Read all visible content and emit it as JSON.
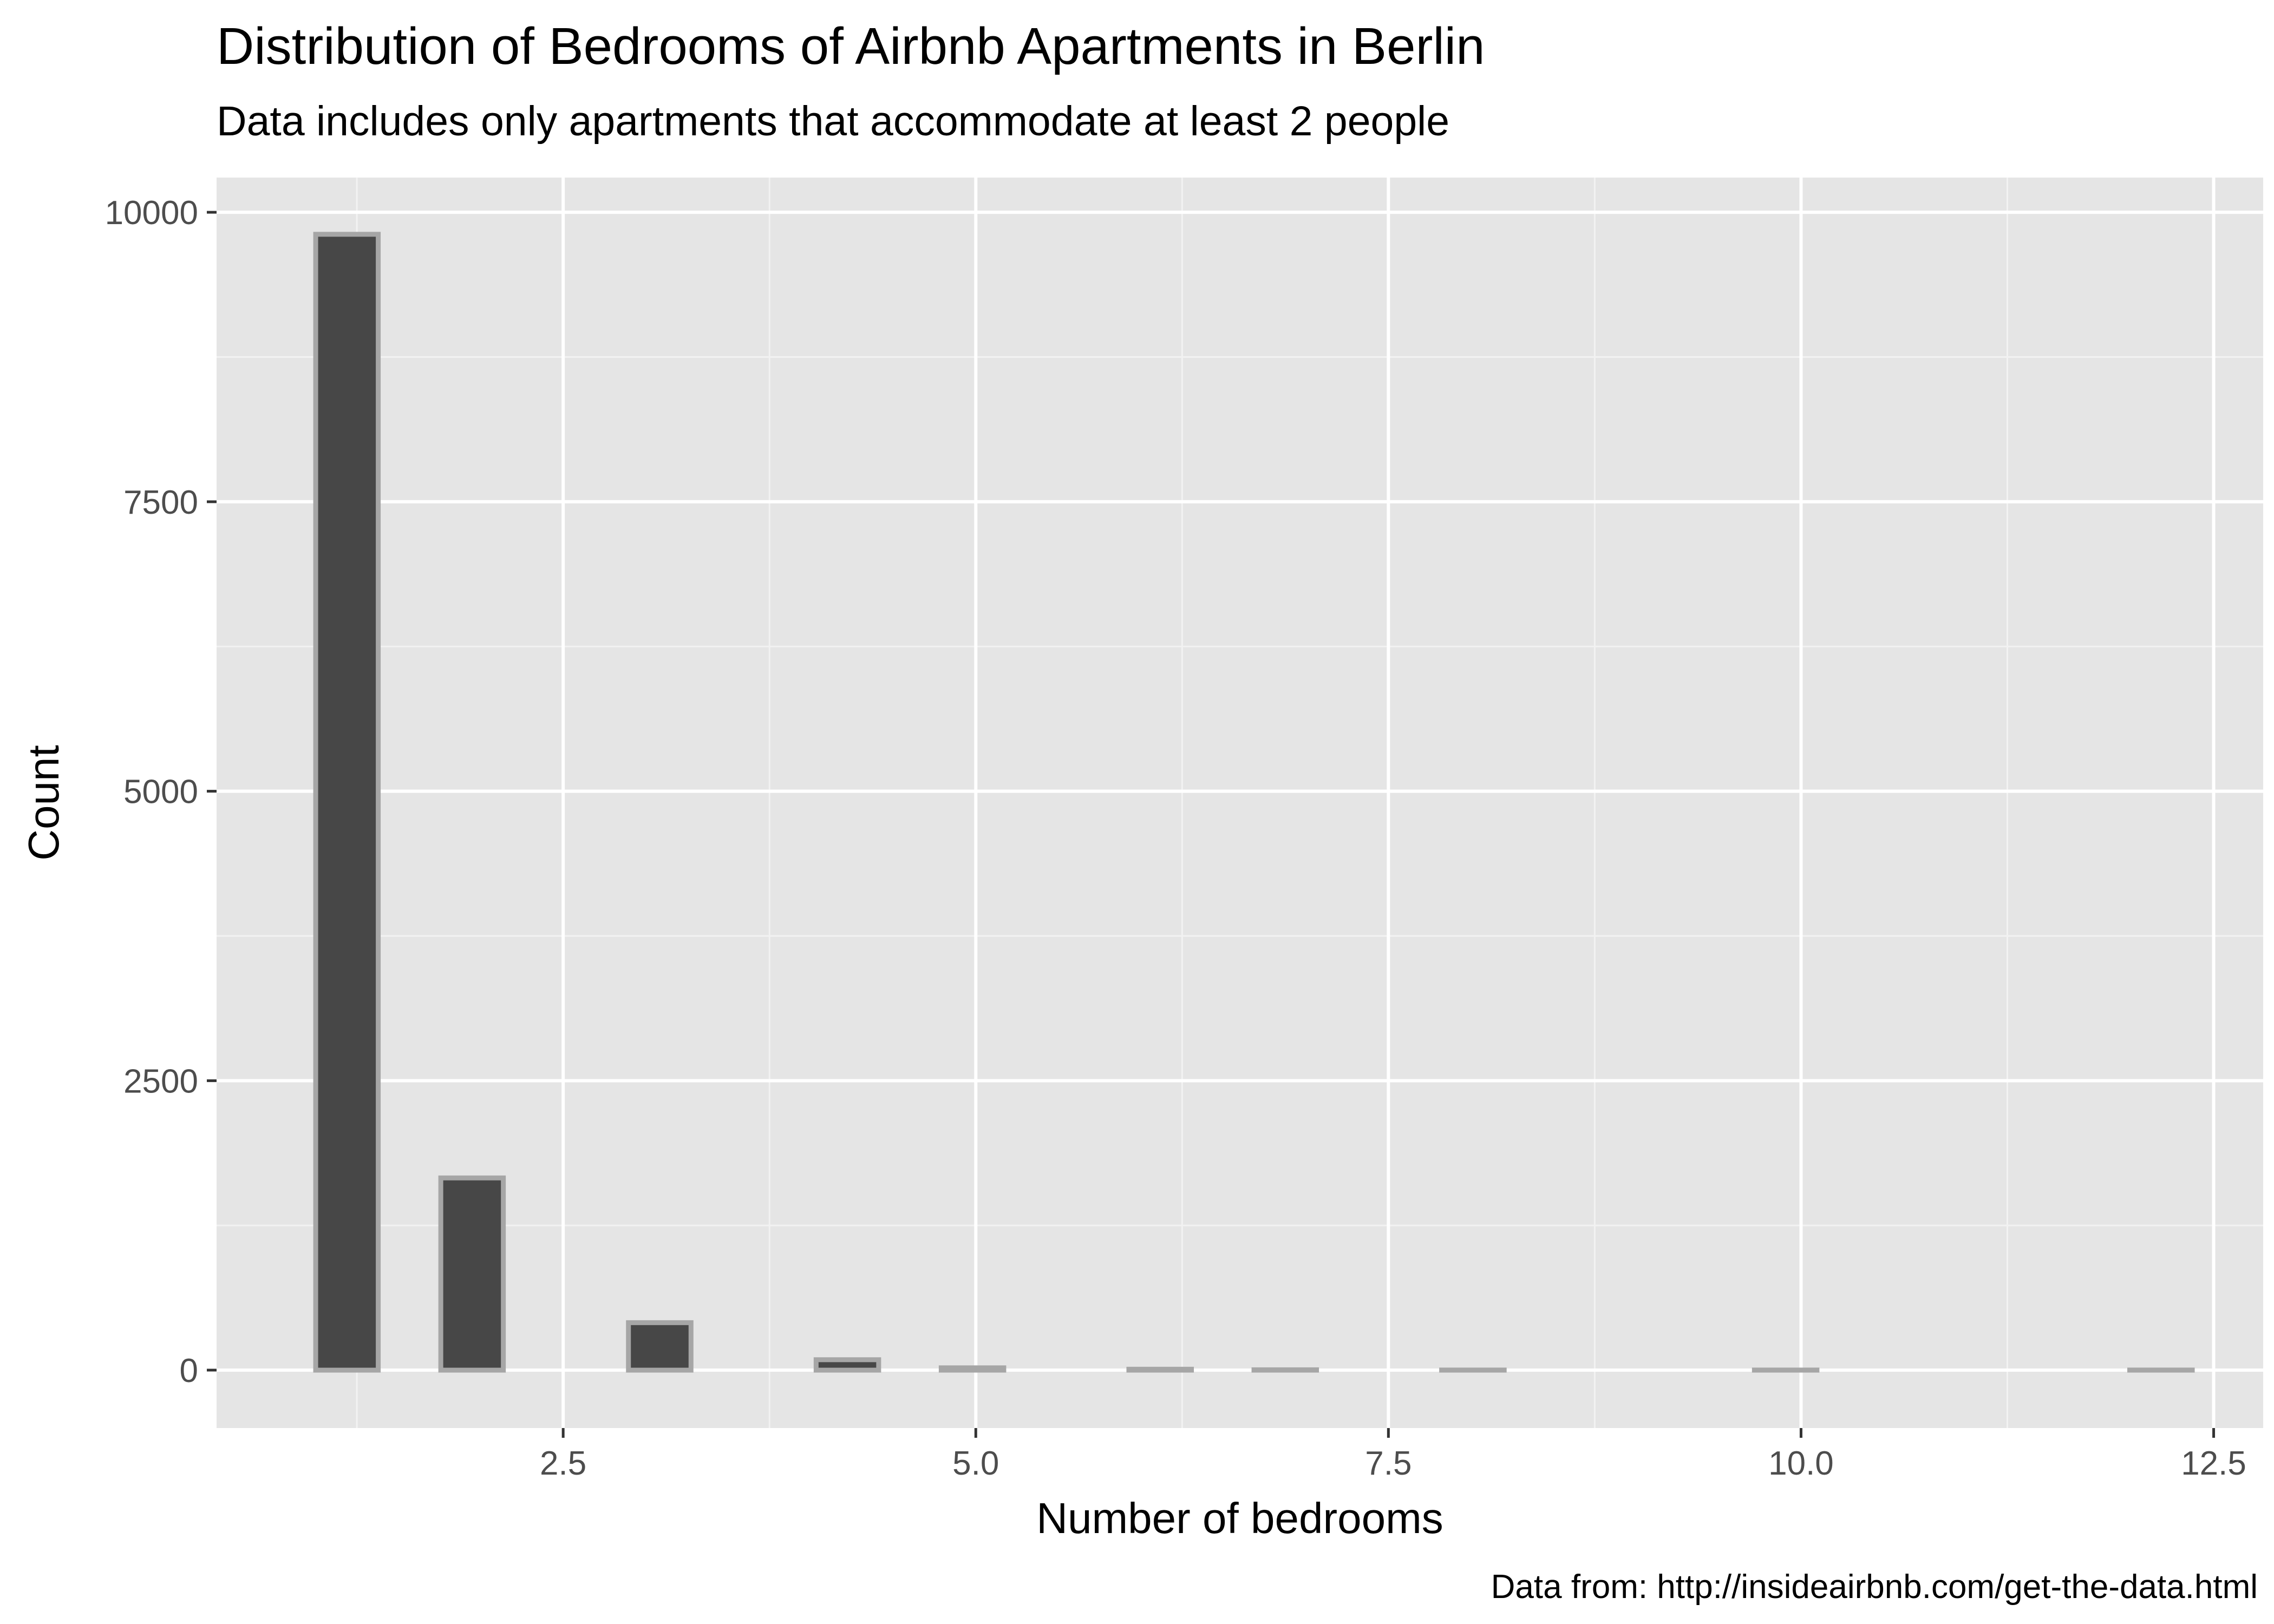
{
  "chart_data": {
    "type": "bar",
    "title": "Distribution of Bedrooms of Airbnb Apartments in Berlin",
    "subtitle": "Data includes only apartments that accommodate at least 2 people",
    "xlabel": "Number of bedrooms",
    "ylabel": "Count",
    "caption": "Data from: http://insideairbnb.com/get-the-data.html",
    "xlim": [
      0.4,
      12.8
    ],
    "ylim": [
      -500,
      10300
    ],
    "x_ticks": [
      2.5,
      5.0,
      7.5,
      10.0,
      12.5
    ],
    "x_tick_labels": [
      "2.5",
      "5.0",
      "7.5",
      "10.0",
      "12.5"
    ],
    "y_ticks": [
      0,
      2500,
      5000,
      7500,
      10000
    ],
    "y_tick_labels": [
      "0",
      "2500",
      "5000",
      "7500",
      "10000"
    ],
    "bin_width": 0.379,
    "bins": [
      {
        "x": 1.19,
        "count": 9810
      },
      {
        "x": 1.569,
        "count": 0
      },
      {
        "x": 1.948,
        "count": 1660
      },
      {
        "x": 2.327,
        "count": 0
      },
      {
        "x": 2.706,
        "count": 0
      },
      {
        "x": 3.085,
        "count": 410
      },
      {
        "x": 3.464,
        "count": 0
      },
      {
        "x": 3.843,
        "count": 0
      },
      {
        "x": 4.222,
        "count": 90
      },
      {
        "x": 4.601,
        "count": 0
      },
      {
        "x": 4.98,
        "count": 20
      },
      {
        "x": 5.359,
        "count": 0
      },
      {
        "x": 5.738,
        "count": 0
      },
      {
        "x": 6.117,
        "count": 8
      },
      {
        "x": 6.496,
        "count": 0
      },
      {
        "x": 6.875,
        "count": 3
      },
      {
        "x": 7.254,
        "count": 0
      },
      {
        "x": 7.633,
        "count": 0
      },
      {
        "x": 8.012,
        "count": 1
      },
      {
        "x": 8.391,
        "count": 0
      },
      {
        "x": 8.77,
        "count": 0
      },
      {
        "x": 9.149,
        "count": 0
      },
      {
        "x": 9.528,
        "count": 0
      },
      {
        "x": 9.907,
        "count": 1
      },
      {
        "x": 10.286,
        "count": 0
      },
      {
        "x": 10.665,
        "count": 0
      },
      {
        "x": 11.044,
        "count": 0
      },
      {
        "x": 11.423,
        "count": 0
      },
      {
        "x": 11.802,
        "count": 0
      },
      {
        "x": 12.181,
        "count": 1
      }
    ],
    "colors": {
      "panel_background": "#e5e5e5",
      "bar_fill": "#474747",
      "bar_outline": "#a6a6a6",
      "gridline": "#ffffff"
    }
  }
}
